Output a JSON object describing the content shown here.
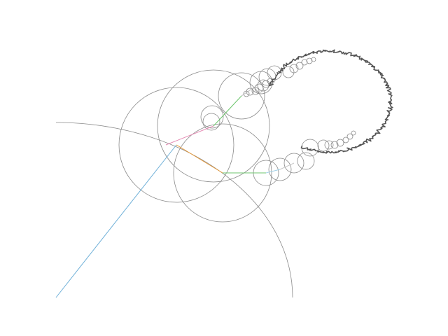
{
  "diagram": {
    "kind": "fourier-epicycles",
    "background": "#ffffff",
    "circle_stroke": "#8a8a8a",
    "trace_stroke": "#555555",
    "arm_colors": [
      "#6fb0d8",
      "#e79a3a",
      "#6cc66c",
      "#e58ab3",
      "#b9b9b9",
      "#9fd0e6",
      "#c9c9c9"
    ]
  }
}
